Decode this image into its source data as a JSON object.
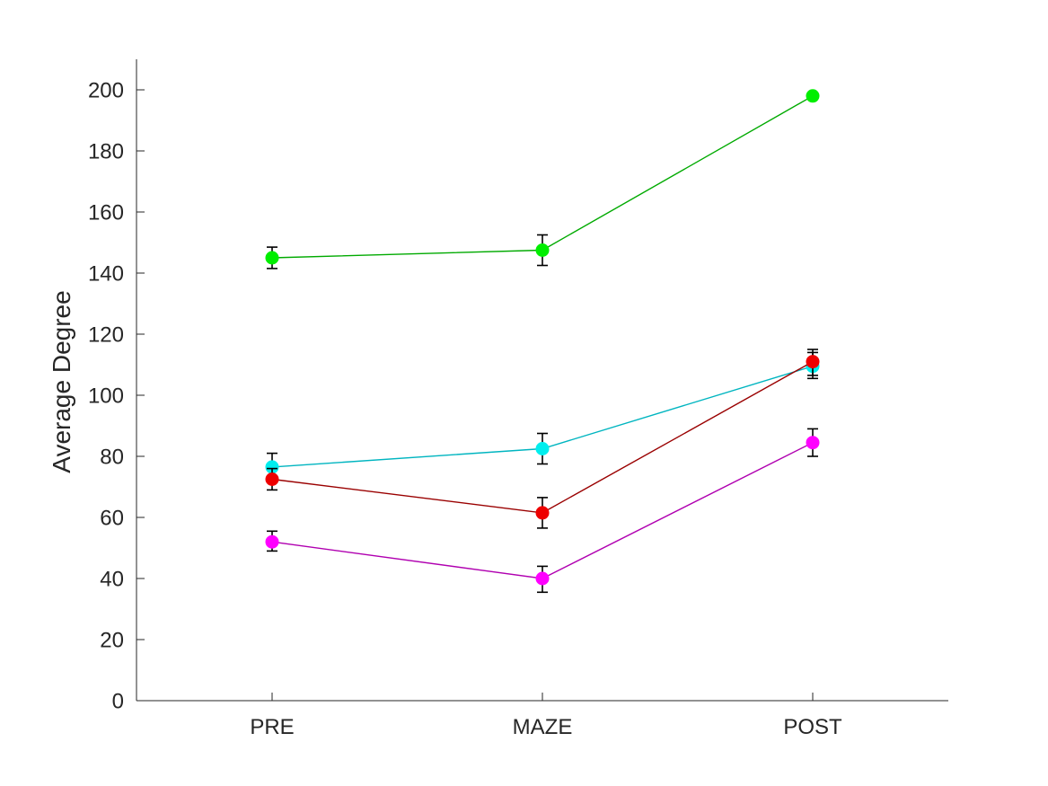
{
  "chart_data": {
    "type": "line",
    "title": "",
    "xlabel": "",
    "ylabel": "Average Degree",
    "categories": [
      "PRE",
      "MAZE",
      "POST"
    ],
    "ylim": [
      0,
      210
    ],
    "yticks": [
      0,
      20,
      40,
      60,
      80,
      100,
      120,
      140,
      160,
      180,
      200
    ],
    "grid": false,
    "legend": "none",
    "series": [
      {
        "color": "#00ee00",
        "line_color": "#00aa00",
        "values": [
          145,
          147.5,
          198
        ],
        "err_low": [
          141.5,
          142.5,
          198
        ],
        "err_high": [
          148.5,
          152.5,
          198
        ]
      },
      {
        "color": "#00eeee",
        "line_color": "#00b5c0",
        "values": [
          76.5,
          82.5,
          109.5
        ],
        "err_low": [
          72.5,
          77.5,
          105.5
        ],
        "err_high": [
          81,
          87.5,
          114
        ]
      },
      {
        "color": "#ee0000",
        "line_color": "#9a0000",
        "values": [
          72.5,
          61.5,
          111
        ],
        "err_low": [
          69,
          56.5,
          106.5
        ],
        "err_high": [
          76,
          66.5,
          115
        ]
      },
      {
        "color": "#ff00ff",
        "line_color": "#b000b0",
        "values": [
          52,
          40,
          84.5
        ],
        "err_low": [
          49,
          35.5,
          80
        ],
        "err_high": [
          55.5,
          44,
          89
        ]
      }
    ]
  }
}
